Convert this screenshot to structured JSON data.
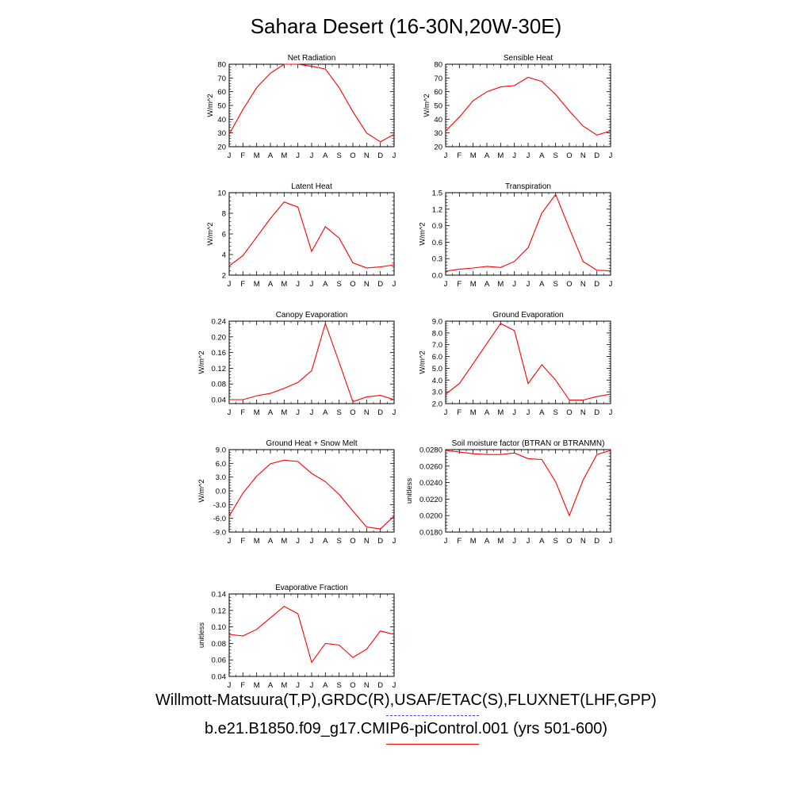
{
  "title": "Sahara Desert (16-30N,20W-30E)",
  "legend": [
    {
      "label": "Willmott-Matsuura(T,P),GRDC(R),USAF/ETAC(S),FLUXNET(LHF,GPP)",
      "color": "#4040ff",
      "style": "dashed"
    },
    {
      "label": "b.e21.B1850.f09_g17.CMIP6-piControl.001 (yrs 501-600)",
      "color": "#ff0000",
      "style": "solid"
    }
  ],
  "months": [
    "J",
    "F",
    "M",
    "A",
    "M",
    "J",
    "J",
    "A",
    "S",
    "O",
    "N",
    "D",
    "J"
  ],
  "line_color": "#ff0000",
  "chart_data": [
    {
      "type": "line",
      "title": "Net Radiation",
      "ylabel": "W/m^2",
      "ylim": [
        20,
        80
      ],
      "yticks": [
        "20",
        "30",
        "40",
        "50",
        "60",
        "70",
        "80"
      ],
      "series": [
        {
          "values": [
            29,
            47,
            63,
            73.5,
            80,
            80,
            78.5,
            76.5,
            63,
            45.5,
            30,
            23.5,
            29
          ]
        }
      ]
    },
    {
      "type": "line",
      "title": "Sensible Heat",
      "ylabel": "W/m^2",
      "ylim": [
        20,
        80
      ],
      "yticks": [
        "20",
        "30",
        "40",
        "50",
        "60",
        "70",
        "80"
      ],
      "series": [
        {
          "values": [
            31.5,
            41.5,
            53.5,
            60,
            63.5,
            64.5,
            70.5,
            67.5,
            58,
            46,
            35,
            28.5,
            31.5
          ]
        }
      ]
    },
    {
      "type": "line",
      "title": "Latent Heat",
      "ylabel": "W/m^2",
      "ylim": [
        2,
        10
      ],
      "yticks": [
        "2",
        "4",
        "6",
        "8",
        "10"
      ],
      "series": [
        {
          "values": [
            2.9,
            3.9,
            5.7,
            7.5,
            9.1,
            8.6,
            4.3,
            6.7,
            5.6,
            3.2,
            2.7,
            2.8,
            3.0
          ]
        }
      ]
    },
    {
      "type": "line",
      "title": "Transpiration",
      "ylabel": "W/m^2",
      "ylim": [
        0,
        1.5
      ],
      "yticks": [
        "0.0",
        "0.3",
        "0.6",
        "0.9",
        "1.2",
        "1.5"
      ],
      "series": [
        {
          "values": [
            0.07,
            0.11,
            0.13,
            0.16,
            0.14,
            0.25,
            0.5,
            1.13,
            1.47,
            0.85,
            0.25,
            0.09,
            0.08
          ]
        }
      ]
    },
    {
      "type": "line",
      "title": "Canopy Evaporation",
      "ylabel": "W/m^2",
      "ylim": [
        0.03,
        0.24
      ],
      "yticks": [
        "0.04",
        "0.08",
        "0.12",
        "0.16",
        "0.20",
        "0.24"
      ],
      "series": [
        {
          "values": [
            0.04,
            0.04,
            0.05,
            0.056,
            0.069,
            0.084,
            0.114,
            0.234,
            0.135,
            0.035,
            0.047,
            0.051,
            0.04
          ]
        }
      ]
    },
    {
      "type": "line",
      "title": "Ground Evaporation",
      "ylabel": "W/m^2",
      "ylim": [
        2.0,
        9.0
      ],
      "yticks": [
        "2.0",
        "3.0",
        "4.0",
        "5.0",
        "6.0",
        "7.0",
        "8.0",
        "9.0"
      ],
      "series": [
        {
          "values": [
            2.8,
            3.7,
            5.4,
            7.1,
            8.8,
            8.2,
            3.7,
            5.3,
            4.0,
            2.3,
            2.3,
            2.6,
            2.8
          ]
        }
      ]
    },
    {
      "type": "line",
      "title": "Ground Heat + Snow Melt",
      "ylabel": "W/m^2",
      "ylim": [
        -9.0,
        9.0
      ],
      "yticks": [
        "-9.0",
        "-6.0",
        "-3.0",
        "0.0",
        "3.0",
        "6.0",
        "9.0"
      ],
      "series": [
        {
          "values": [
            -5.5,
            -0.5,
            3.2,
            5.9,
            6.7,
            6.4,
            3.8,
            2.0,
            -0.8,
            -4.4,
            -7.9,
            -8.3,
            -5.5
          ]
        }
      ]
    },
    {
      "type": "line",
      "title": "Soil moisture factor (BTRAN or BTRANMN)",
      "ylabel": "unitless",
      "ylim": [
        0.018,
        0.028
      ],
      "yticks": [
        "0.0180",
        "0.0200",
        "0.0220",
        "0.0240",
        "0.0260",
        "0.0280"
      ],
      "series": [
        {
          "values": [
            0.0279,
            0.0277,
            0.0275,
            0.0274,
            0.0274,
            0.0276,
            0.0269,
            0.0268,
            0.0241,
            0.02,
            0.0243,
            0.0274,
            0.0279
          ]
        }
      ]
    },
    {
      "type": "line",
      "title": "Evaporative Fraction",
      "ylabel": "unitless",
      "ylim": [
        0.04,
        0.14
      ],
      "yticks": [
        "0.04",
        "0.06",
        "0.08",
        "0.10",
        "0.12",
        "0.14"
      ],
      "series": [
        {
          "values": [
            0.091,
            0.089,
            0.097,
            0.111,
            0.125,
            0.116,
            0.057,
            0.08,
            0.078,
            0.063,
            0.073,
            0.095,
            0.091
          ]
        }
      ]
    }
  ]
}
